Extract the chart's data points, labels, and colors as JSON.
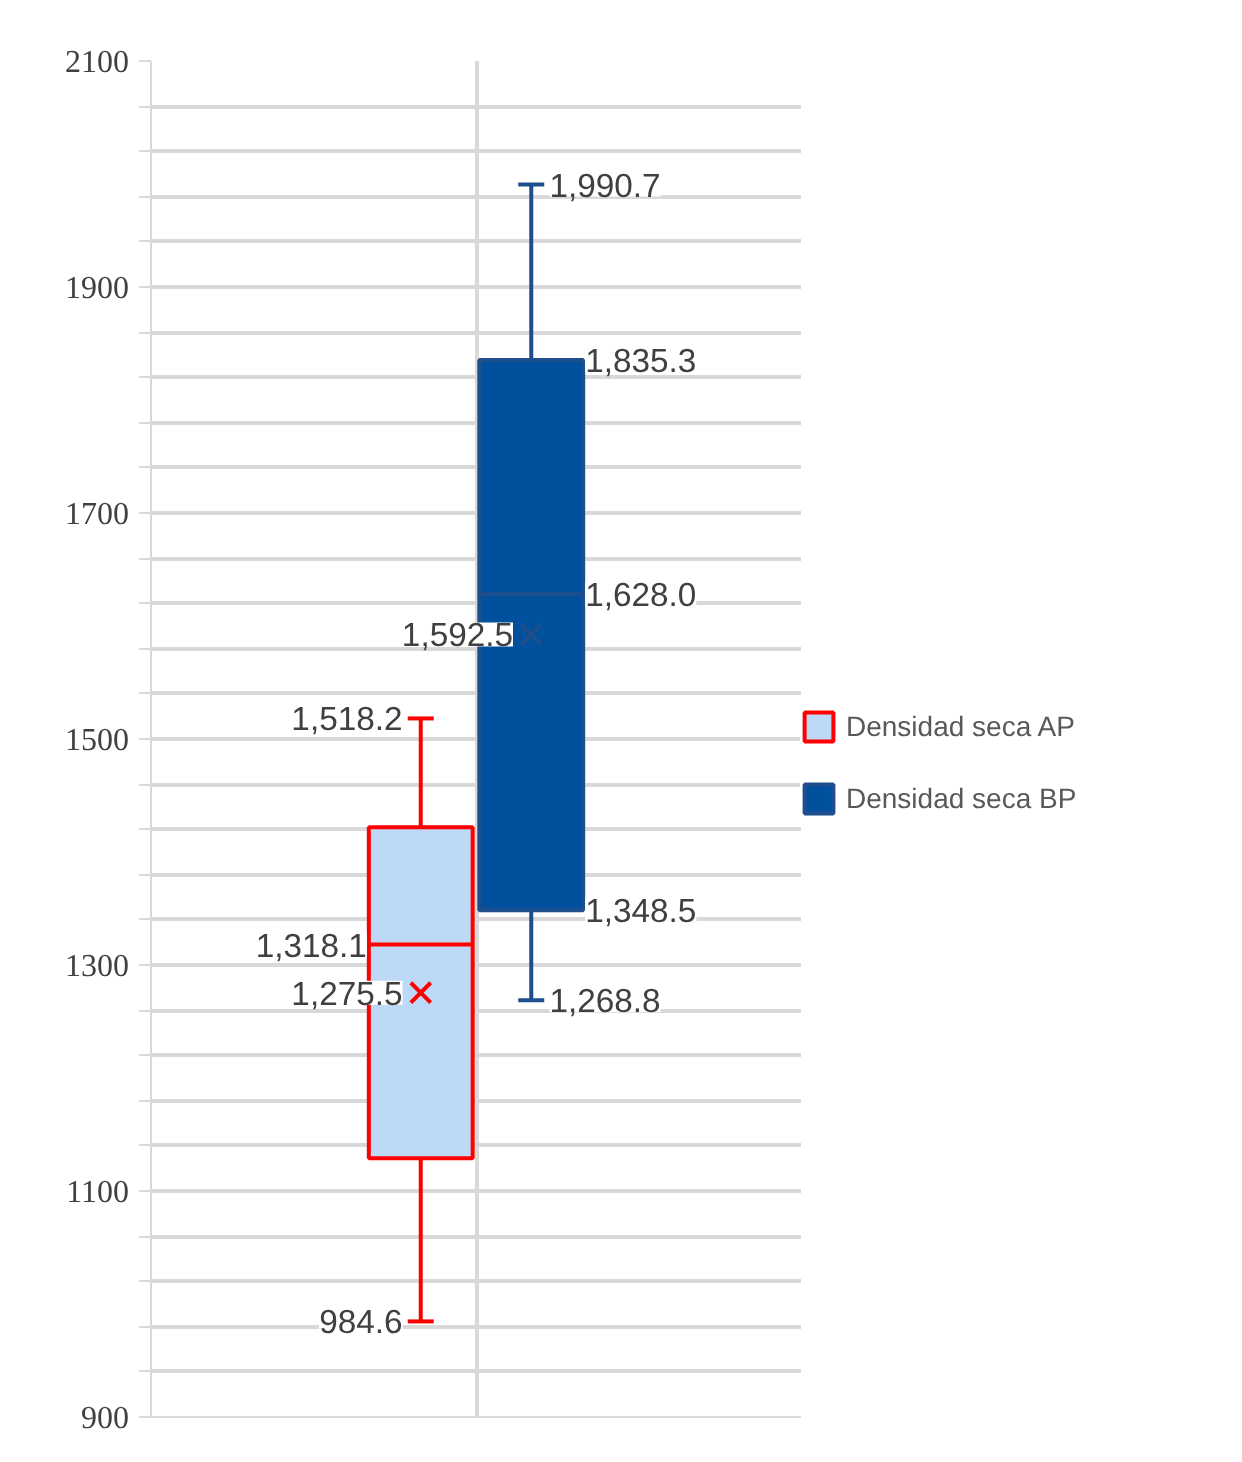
{
  "chart_data": {
    "type": "box",
    "categories": [
      null
    ],
    "ylim": [
      900,
      2100
    ],
    "yticks": [
      900,
      {
        "value": 940,
        "label": null
      },
      {
        "value": 980,
        "label": null
      },
      {
        "value": 1020,
        "label": null
      },
      {
        "value": 1060,
        "label": null
      },
      1100,
      {
        "value": 1140,
        "label": null
      },
      {
        "value": 1180,
        "label": null
      },
      {
        "value": 1220,
        "label": null
      },
      {
        "value": 1260,
        "label": null
      },
      1300,
      {
        "value": 1340,
        "label": null
      },
      {
        "value": 1380,
        "label": null
      },
      {
        "value": 1420,
        "label": null
      },
      {
        "value": 1460,
        "label": null
      },
      1500,
      {
        "value": 1540,
        "label": null
      },
      {
        "value": 1580,
        "label": null
      },
      {
        "value": 1620,
        "label": null
      },
      {
        "value": 1660,
        "label": null
      },
      1700,
      {
        "value": 1740,
        "label": null
      },
      {
        "value": 1780,
        "label": null
      },
      {
        "value": 1820,
        "label": null
      },
      {
        "value": 1860,
        "label": null
      },
      1900,
      {
        "value": 1940,
        "label": null
      },
      {
        "value": 1980,
        "label": null
      },
      {
        "value": 2020,
        "label": null
      },
      {
        "value": 2060,
        "label": null
      },
      2100
    ],
    "grid": true,
    "legend": "right",
    "series": [
      {
        "name": "Densidad seca AP",
        "color": "#ff0000",
        "colors": [
          "#bdd9f5"
        ],
        "boxes": [
          {
            "low": 984.6,
            "q1": 1129,
            "median": 1318.1,
            "q3": 1422,
            "high": 1518.2,
            "mean": 1275.5
          }
        ],
        "value_labels": [
          [
            "984.6",
            null,
            "1,318.1",
            null,
            "1,518.2",
            "1,275.5"
          ]
        ]
      },
      {
        "name": "Densidad seca BP",
        "color": "#1f4e8c",
        "colors": [
          "#00509e"
        ],
        "boxes": [
          {
            "low": 1268.8,
            "q1": 1348.5,
            "median": 1628.0,
            "q3": 1835.3,
            "high": 1990.7,
            "mean": 1592.5
          }
        ],
        "value_labels": [
          [
            "1,268.8",
            "1,348.5",
            "1,628.0",
            "1,835.3",
            "1,990.7",
            "1,592.5"
          ]
        ]
      }
    ]
  }
}
